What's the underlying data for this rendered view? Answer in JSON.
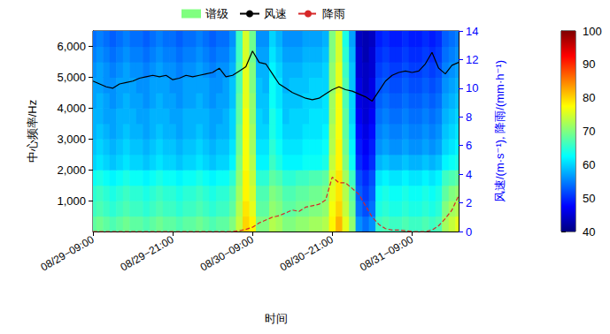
{
  "chart_data": {
    "type": "heatmap",
    "xlabel": "时间",
    "ylabel": "中心频率/Hz",
    "y2label": "风速/(m·s⁻¹), 降雨/(mm·h⁻¹)",
    "x": [
      "08/29−09:00",
      null,
      null,
      null,
      null,
      null,
      null,
      null,
      null,
      null,
      null,
      null,
      "08/29−21:00",
      null,
      null,
      null,
      null,
      null,
      null,
      null,
      null,
      null,
      null,
      null,
      "08/30−09:00",
      null,
      null,
      null,
      null,
      null,
      null,
      null,
      null,
      null,
      null,
      null,
      "08/30−21:00",
      null,
      null,
      null,
      null,
      null,
      null,
      null,
      null,
      null,
      null,
      null,
      "08/31−09:00",
      null,
      null,
      null,
      null,
      null,
      null,
      null
    ],
    "ylim": [
      0,
      6500
    ],
    "yticks": [
      1000,
      2000,
      3000,
      4000,
      5000,
      6000
    ],
    "y2lim": [
      0,
      14
    ],
    "y2ticks": [
      0,
      2,
      4,
      6,
      8,
      10,
      12,
      14
    ],
    "grid": false,
    "legend": "top",
    "colorbar": {
      "range": [
        40,
        100
      ],
      "ticks": [
        40,
        50,
        60,
        70,
        80,
        90,
        100
      ],
      "colors": [
        "#00007f",
        "#0000ff",
        "#0080ff",
        "#00ffff",
        "#80ff80",
        "#ffff00",
        "#ff8000",
        "#ff0000",
        "#7f0000"
      ]
    },
    "series": [
      {
        "name": "谱级",
        "type": "heatmap",
        "color": "#80ff80",
        "frequencies": [
          250,
          750,
          1250,
          1750,
          2250,
          2750,
          3250,
          3750,
          4250,
          4750,
          5250,
          5750,
          6250
        ],
        "levels": [
          [
            68,
            69,
            68,
            67,
            68,
            69,
            68,
            68,
            67,
            68,
            69,
            68,
            68,
            67,
            68,
            68,
            69,
            68,
            67,
            68,
            68,
            70,
            74,
            80,
            78,
            70,
            70,
            73,
            72,
            70,
            70,
            71,
            71,
            72,
            72,
            73,
            78,
            82,
            76,
            71,
            56,
            54,
            56,
            66,
            67,
            66,
            66,
            67,
            66,
            66,
            67,
            66,
            67,
            72,
            74,
            76
          ],
          [
            66,
            67,
            66,
            65,
            66,
            67,
            66,
            66,
            65,
            66,
            67,
            66,
            66,
            65,
            66,
            66,
            67,
            66,
            65,
            66,
            66,
            68,
            73,
            79,
            76,
            68,
            68,
            71,
            70,
            68,
            68,
            69,
            69,
            70,
            70,
            71,
            77,
            80,
            74,
            69,
            54,
            52,
            54,
            64,
            65,
            64,
            64,
            65,
            64,
            64,
            65,
            64,
            65,
            70,
            72,
            73
          ],
          [
            65,
            66,
            65,
            64,
            65,
            66,
            65,
            65,
            64,
            65,
            66,
            65,
            65,
            64,
            65,
            65,
            66,
            65,
            64,
            65,
            65,
            67,
            72,
            78,
            75,
            67,
            67,
            70,
            69,
            67,
            67,
            68,
            68,
            69,
            69,
            70,
            76,
            79,
            73,
            68,
            53,
            51,
            53,
            63,
            64,
            63,
            63,
            64,
            63,
            63,
            64,
            63,
            64,
            68,
            70,
            71
          ],
          [
            63,
            64,
            63,
            62,
            63,
            64,
            63,
            63,
            62,
            63,
            64,
            63,
            63,
            62,
            63,
            63,
            64,
            63,
            62,
            63,
            63,
            65,
            71,
            78,
            74,
            65,
            65,
            68,
            67,
            65,
            65,
            66,
            66,
            67,
            67,
            68,
            75,
            79,
            72,
            66,
            52,
            50,
            52,
            61,
            62,
            61,
            61,
            62,
            61,
            61,
            62,
            61,
            62,
            66,
            67,
            68
          ],
          [
            60,
            61,
            60,
            59,
            60,
            61,
            60,
            60,
            59,
            60,
            61,
            60,
            60,
            59,
            60,
            60,
            61,
            60,
            59,
            60,
            60,
            62,
            70,
            77,
            73,
            62,
            62,
            66,
            64,
            62,
            62,
            62,
            63,
            63,
            63,
            64,
            74,
            78,
            70,
            63,
            50,
            48,
            50,
            58,
            59,
            58,
            58,
            59,
            58,
            58,
            59,
            58,
            59,
            62,
            63,
            64
          ],
          [
            59,
            60,
            59,
            58,
            59,
            60,
            59,
            59,
            58,
            59,
            60,
            59,
            59,
            58,
            59,
            59,
            60,
            59,
            58,
            59,
            59,
            61,
            69,
            77,
            72,
            61,
            61,
            65,
            63,
            61,
            61,
            61,
            62,
            62,
            62,
            63,
            73,
            78,
            69,
            62,
            49,
            47,
            49,
            56,
            57,
            56,
            56,
            57,
            56,
            56,
            57,
            56,
            57,
            60,
            61,
            62
          ],
          [
            58,
            59,
            58,
            57,
            58,
            59,
            58,
            58,
            57,
            58,
            59,
            58,
            58,
            57,
            58,
            58,
            59,
            58,
            57,
            58,
            58,
            60,
            69,
            77,
            72,
            60,
            60,
            64,
            62,
            60,
            60,
            60,
            61,
            61,
            61,
            62,
            73,
            77,
            68,
            61,
            48,
            46,
            48,
            55,
            56,
            55,
            55,
            56,
            55,
            55,
            56,
            55,
            56,
            59,
            60,
            61
          ],
          [
            58,
            58,
            57,
            57,
            58,
            58,
            58,
            57,
            57,
            58,
            58,
            58,
            57,
            57,
            58,
            58,
            58,
            58,
            57,
            57,
            58,
            60,
            68,
            77,
            71,
            60,
            59,
            64,
            62,
            59,
            60,
            60,
            60,
            61,
            61,
            61,
            72,
            77,
            68,
            60,
            47,
            45,
            47,
            54,
            55,
            54,
            54,
            55,
            54,
            54,
            55,
            54,
            55,
            58,
            59,
            60
          ],
          [
            57,
            58,
            57,
            56,
            57,
            58,
            57,
            57,
            56,
            57,
            58,
            57,
            57,
            56,
            57,
            57,
            58,
            57,
            56,
            57,
            57,
            59,
            68,
            76,
            71,
            59,
            59,
            63,
            61,
            59,
            59,
            59,
            60,
            60,
            60,
            61,
            72,
            77,
            67,
            60,
            46,
            45,
            46,
            53,
            54,
            53,
            53,
            54,
            53,
            53,
            54,
            53,
            54,
            57,
            58,
            59
          ],
          [
            57,
            57,
            56,
            56,
            57,
            57,
            57,
            56,
            56,
            57,
            57,
            57,
            56,
            56,
            57,
            57,
            57,
            57,
            56,
            56,
            57,
            59,
            67,
            76,
            70,
            59,
            58,
            63,
            61,
            58,
            59,
            59,
            59,
            60,
            60,
            60,
            71,
            76,
            67,
            59,
            46,
            44,
            46,
            52,
            53,
            52,
            52,
            53,
            52,
            52,
            53,
            52,
            53,
            56,
            57,
            58
          ],
          [
            56,
            57,
            56,
            55,
            56,
            57,
            56,
            56,
            55,
            56,
            57,
            56,
            56,
            55,
            56,
            56,
            57,
            56,
            55,
            56,
            56,
            58,
            67,
            76,
            70,
            58,
            58,
            62,
            60,
            58,
            58,
            58,
            59,
            59,
            59,
            60,
            71,
            76,
            66,
            59,
            45,
            44,
            45,
            51,
            52,
            51,
            51,
            52,
            51,
            51,
            52,
            51,
            52,
            55,
            56,
            57
          ],
          [
            55,
            56,
            55,
            54,
            55,
            56,
            55,
            55,
            54,
            55,
            56,
            55,
            55,
            54,
            55,
            55,
            56,
            55,
            54,
            55,
            55,
            57,
            66,
            75,
            69,
            57,
            57,
            61,
            59,
            57,
            57,
            57,
            58,
            58,
            58,
            59,
            70,
            75,
            65,
            58,
            45,
            43,
            45,
            50,
            51,
            50,
            50,
            51,
            50,
            50,
            51,
            50,
            51,
            54,
            55,
            56
          ],
          [
            54,
            55,
            54,
            53,
            54,
            55,
            54,
            54,
            53,
            54,
            55,
            54,
            54,
            53,
            54,
            54,
            55,
            54,
            53,
            54,
            54,
            56,
            66,
            75,
            69,
            56,
            56,
            60,
            58,
            56,
            56,
            56,
            57,
            57,
            57,
            58,
            70,
            75,
            64,
            57,
            44,
            43,
            44,
            49,
            50,
            49,
            49,
            50,
            49,
            49,
            50,
            49,
            50,
            53,
            54,
            55
          ]
        ]
      },
      {
        "name": "风速",
        "type": "line",
        "color": "#000000",
        "line_style": "solid",
        "axis": "y2",
        "values": [
          10.5,
          10.3,
          10.1,
          10.0,
          10.3,
          10.4,
          10.5,
          10.7,
          10.8,
          10.9,
          10.8,
          10.9,
          10.6,
          10.7,
          10.9,
          10.8,
          10.9,
          11.0,
          11.1,
          11.4,
          10.8,
          10.9,
          11.2,
          11.5,
          12.6,
          11.8,
          11.7,
          11.0,
          10.3,
          10.0,
          9.7,
          9.5,
          9.3,
          9.2,
          9.3,
          9.6,
          9.9,
          10.1,
          9.9,
          9.8,
          9.6,
          9.4,
          9.1,
          9.8,
          10.5,
          10.9,
          11.1,
          11.2,
          11.1,
          11.2,
          11.7,
          12.5,
          11.4,
          11.0,
          11.6,
          11.8
        ]
      },
      {
        "name": "降雨",
        "type": "line",
        "color": "#d62728",
        "line_style": "dashed",
        "axis": "y2",
        "values": [
          0,
          0,
          0,
          0,
          0,
          0,
          0,
          0,
          0,
          0,
          0,
          0,
          0,
          0,
          0,
          0,
          0,
          0,
          0,
          0,
          0,
          0,
          0.05,
          0.15,
          0.3,
          0.6,
          0.8,
          1.0,
          1.1,
          1.3,
          1.5,
          1.4,
          1.7,
          1.8,
          1.9,
          2.2,
          3.8,
          3.4,
          3.4,
          3.0,
          2.6,
          1.8,
          1.0,
          0.5,
          0.2,
          0.1,
          0.1,
          0.05,
          0,
          0,
          0,
          0.1,
          0.4,
          0.9,
          1.5,
          2.5
        ]
      }
    ]
  }
}
